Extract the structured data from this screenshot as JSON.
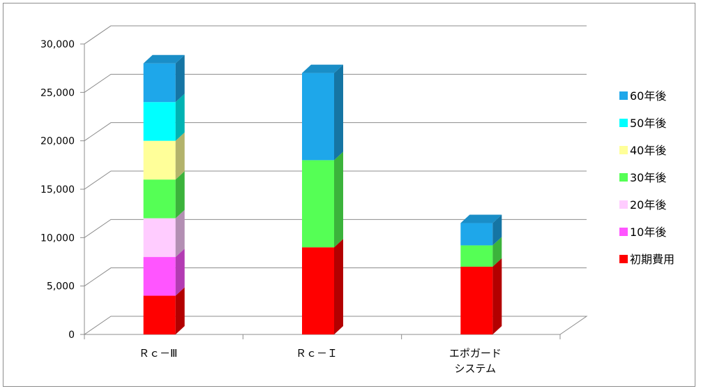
{
  "chart_data": {
    "type": "bar",
    "stacked": true,
    "three_d": true,
    "categories": [
      "Ｒｃ－Ⅲ",
      "Ｒｃ－Ｉ",
      [
        "エポガード",
        "システム"
      ]
    ],
    "series": [
      {
        "name": "初期費用",
        "values": [
          4000,
          9000,
          7000
        ],
        "color": "#ff0000"
      },
      {
        "name": "10年後",
        "values": [
          4000,
          0,
          0
        ],
        "color": "#ff55ff"
      },
      {
        "name": "20年後",
        "values": [
          4000,
          0,
          0
        ],
        "color": "#ffccff"
      },
      {
        "name": "30年後",
        "values": [
          4000,
          9000,
          2200
        ],
        "color": "#55ff55"
      },
      {
        "name": "40年後",
        "values": [
          4000,
          0,
          0
        ],
        "color": "#ffff99"
      },
      {
        "name": "50年後",
        "values": [
          4000,
          0,
          0
        ],
        "color": "#00ffff"
      },
      {
        "name": "60年後",
        "values": [
          4000,
          9000,
          2300
        ],
        "color": "#1ea7ea"
      }
    ],
    "yticks": [
      "0",
      "5,000",
      "10,000",
      "15,000",
      "20,000",
      "25,000",
      "30,000"
    ],
    "ylim": [
      0,
      30000
    ],
    "grid": true,
    "legend": "right"
  }
}
